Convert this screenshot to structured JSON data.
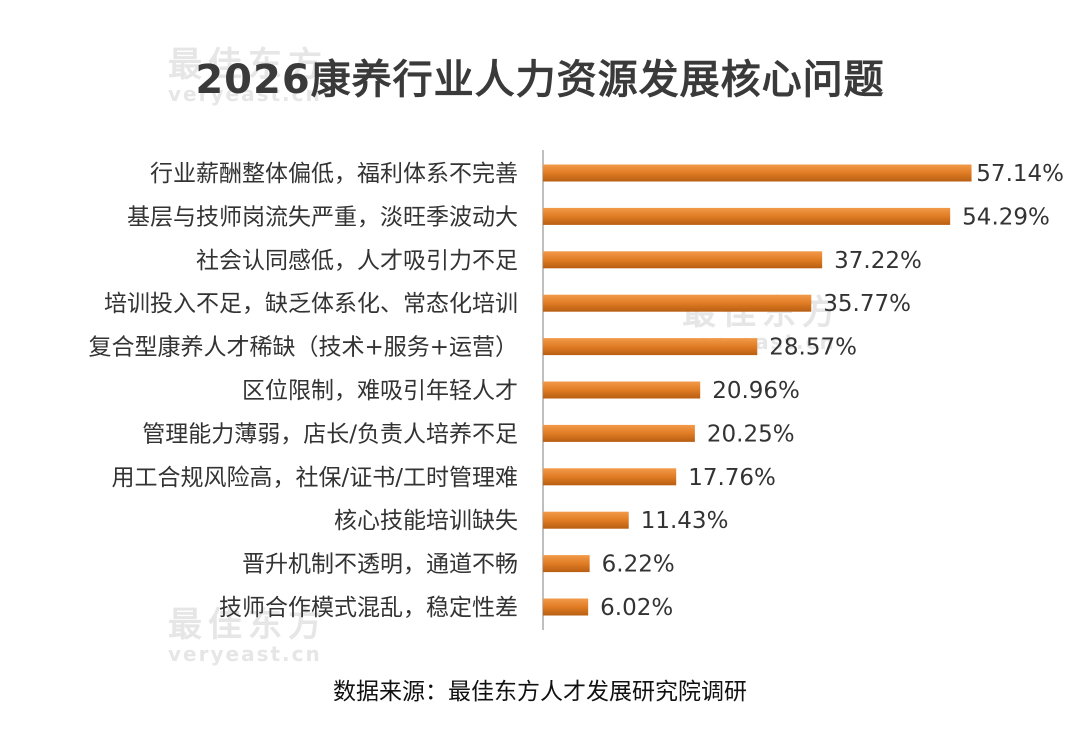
{
  "title": "2026康养行业人力资源发展核心问题",
  "source": "数据来源：最佳东方人才发展研究院调研",
  "watermark": {
    "cn": "最佳东方",
    "en": "veryeast.cn"
  },
  "chart_data": {
    "type": "bar",
    "orientation": "horizontal",
    "title": "2026康养行业人力资源发展核心问题",
    "xlabel": "",
    "ylabel": "",
    "xlim": [
      0,
      60
    ],
    "grid": false,
    "legend": "none",
    "bar_color": "#e07c24",
    "categories": [
      "行业薪酬整体偏低，福利体系不完善",
      "基层与技师岗流失严重，淡旺季波动大",
      "社会认同感低，人才吸引力不足",
      "培训投入不足，缺乏体系化、常态化培训",
      "复合型康养人才稀缺（技术+服务+运营）",
      "区位限制，难吸引年轻人才",
      "管理能力薄弱，店长/负责人培养不足",
      "用工合规风险高，社保/证书/工时管理难",
      "核心技能培训缺失",
      "晋升机制不透明，通道不畅",
      "技师合作模式混乱，稳定性差"
    ],
    "values": [
      57.14,
      54.29,
      37.22,
      35.77,
      28.57,
      20.96,
      20.25,
      17.76,
      11.43,
      6.22,
      6.02
    ],
    "value_labels": [
      "57.14%",
      "54.29%",
      "37.22%",
      "35.77%",
      "28.57%",
      "20.96%",
      "20.25%",
      "17.76%",
      "11.43%",
      "6.22%",
      "6.02%"
    ]
  }
}
